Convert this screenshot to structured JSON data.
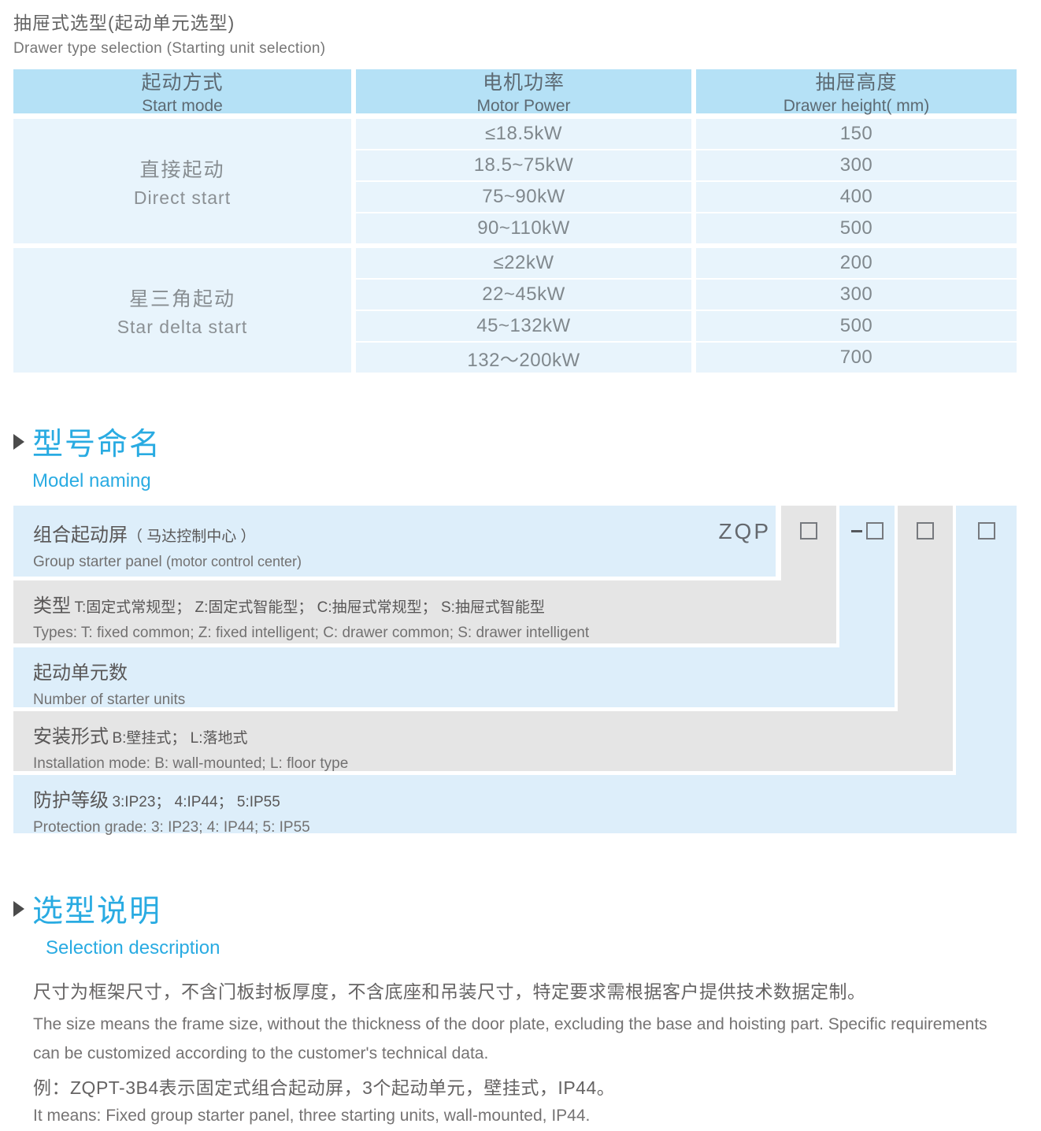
{
  "page": {
    "title_zh": "抽屉式选型(起动单元选型)",
    "title_en": "Drawer type selection (Starting unit selection)"
  },
  "colors": {
    "accent_blue": "#29abe2",
    "table_header_blue": "#b5e1f6",
    "table_row_blue": "#e8f4fc",
    "diagram_blue": "#ddeefa",
    "diagram_gray": "#e5e5e5"
  },
  "table": {
    "headers": [
      {
        "zh": "起动方式",
        "en": "Start mode"
      },
      {
        "zh": "电机功率",
        "en": "Motor Power"
      },
      {
        "zh": "抽屉高度",
        "en": "Drawer height( mm)"
      }
    ],
    "groups": [
      {
        "mode_zh": "直接起动",
        "mode_en": "Direct start",
        "rows": [
          {
            "power": "≤18.5kW",
            "height": "150"
          },
          {
            "power": "18.5~75kW",
            "height": "300"
          },
          {
            "power": "75~90kW",
            "height": "400"
          },
          {
            "power": "90~110kW",
            "height": "500"
          }
        ]
      },
      {
        "mode_zh": "星三角起动",
        "mode_en": "Star delta start",
        "rows": [
          {
            "power": "≤22kW",
            "height": "200"
          },
          {
            "power": "22~45kW",
            "height": "300"
          },
          {
            "power": "45~132kW",
            "height": "500"
          },
          {
            "power": "132～200kW",
            "height": "700"
          }
        ]
      }
    ]
  },
  "model_naming": {
    "section_title_zh": "型号命名",
    "section_title_en": "Model naming",
    "code": "ZQP",
    "dash": "-",
    "rows": [
      {
        "zh_main": "组合起动屏",
        "zh_sub": "（ 马达控制中心 ）",
        "en_main": "Group starter panel ",
        "en_sub": "(motor control center)"
      },
      {
        "zh_main": "类型",
        "zh_sub": "T:固定式常规型； Z:固定式智能型； C:抽屉式常规型； S:抽屉式智能型",
        "en": "Types: T: fixed common; Z: fixed intelligent; C: drawer common; S: drawer intelligent"
      },
      {
        "zh_main": "起动单元数",
        "en": "Number of starter units"
      },
      {
        "zh_main": "安装形式",
        "zh_sub": "B:壁挂式； L:落地式",
        "en": "Installation mode: B: wall-mounted; L: floor type"
      },
      {
        "zh_main": "防护等级",
        "zh_sub": "3:IP23； 4:IP44； 5:IP55",
        "en": "Protection grade:  3: IP23; 4: IP44; 5: IP55"
      }
    ]
  },
  "selection": {
    "section_title_zh": "选型说明",
    "section_title_en": "Selection description",
    "para_zh": "尺寸为框架尺寸，不含门板封板厚度，不含底座和吊装尺寸，特定要求需根据客户提供技术数据定制。",
    "para_en": "The size means the frame size, without the thickness of the door plate, excluding the base and hoisting part. Specific requirements can be customized according to the customer's technical data.",
    "example_zh": "例：ZQPT-3B4表示固定式组合起动屏，3个起动单元，壁挂式，IP44。",
    "example_en": "It means: Fixed group starter panel, three starting units, wall-mounted, IP44."
  }
}
